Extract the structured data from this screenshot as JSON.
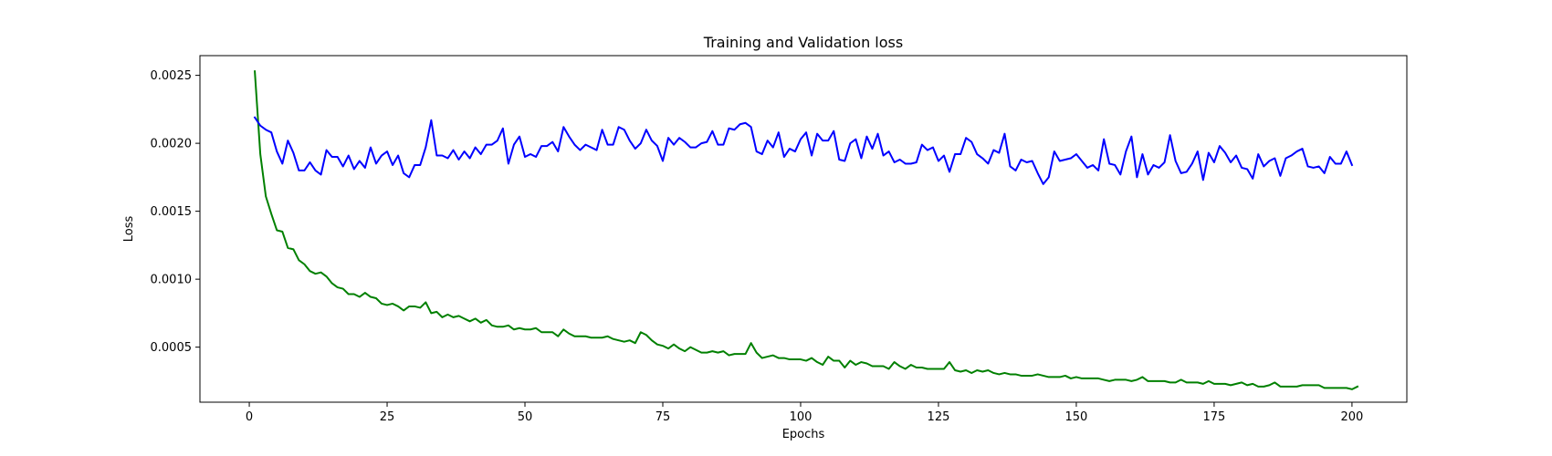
{
  "chart_data": {
    "type": "line",
    "title": "Training and Validation loss",
    "xlabel": "Epochs",
    "ylabel": "Loss",
    "xlim": [
      -8.95,
      209.95
    ],
    "ylim": [
      9.5e-05,
      0.002645
    ],
    "grid": false,
    "x_ticks": [
      0,
      25,
      50,
      75,
      100,
      125,
      150,
      175,
      200
    ],
    "x_tick_labels": [
      "0",
      "25",
      "50",
      "75",
      "100",
      "125",
      "150",
      "175",
      "200"
    ],
    "y_ticks": [
      0.0005,
      0.001,
      0.0015,
      0.002,
      0.0025
    ],
    "y_tick_labels": [
      "0.0005",
      "0.0010",
      "0.0015",
      "0.0020",
      "0.0025"
    ],
    "x_start": 1,
    "x_step": 1,
    "series": [
      {
        "color": "#008000",
        "values": [
          0.00253,
          0.00192,
          0.00161,
          0.00148,
          0.00136,
          0.00135,
          0.00123,
          0.00122,
          0.00114,
          0.00111,
          0.00106,
          0.00104,
          0.00105,
          0.00102,
          0.00097,
          0.00094,
          0.00093,
          0.00089,
          0.00089,
          0.00087,
          0.0009,
          0.00087,
          0.00086,
          0.00082,
          0.00081,
          0.00082,
          0.0008,
          0.00077,
          0.0008,
          0.0008,
          0.00079,
          0.00083,
          0.00075,
          0.00076,
          0.00072,
          0.00074,
          0.00072,
          0.00073,
          0.00071,
          0.00069,
          0.00071,
          0.00068,
          0.0007,
          0.00066,
          0.00065,
          0.00065,
          0.00066,
          0.00063,
          0.00064,
          0.00063,
          0.00063,
          0.00064,
          0.00061,
          0.00061,
          0.00061,
          0.00058,
          0.00063,
          0.0006,
          0.00058,
          0.00058,
          0.00058,
          0.00057,
          0.00057,
          0.00057,
          0.00058,
          0.00056,
          0.00055,
          0.00054,
          0.00055,
          0.00053,
          0.00061,
          0.00059,
          0.00055,
          0.00052,
          0.00051,
          0.00049,
          0.00052,
          0.00049,
          0.00047,
          0.0005,
          0.00048,
          0.00046,
          0.00046,
          0.00047,
          0.00046,
          0.00047,
          0.00044,
          0.00045,
          0.00045,
          0.00045,
          0.00053,
          0.00046,
          0.00042,
          0.00043,
          0.00044,
          0.00042,
          0.00042,
          0.00041,
          0.00041,
          0.00041,
          0.0004,
          0.00042,
          0.00039,
          0.00037,
          0.00043,
          0.0004,
          0.0004,
          0.00035,
          0.0004,
          0.00037,
          0.00039,
          0.00038,
          0.00036,
          0.00036,
          0.00036,
          0.00034,
          0.00039,
          0.00036,
          0.00034,
          0.00037,
          0.00035,
          0.00035,
          0.00034,
          0.00034,
          0.00034,
          0.00034,
          0.00039,
          0.00033,
          0.00032,
          0.00033,
          0.00031,
          0.00033,
          0.00032,
          0.00033,
          0.00031,
          0.0003,
          0.00031,
          0.0003,
          0.0003,
          0.00029,
          0.00029,
          0.00029,
          0.0003,
          0.00029,
          0.00028,
          0.00028,
          0.00028,
          0.00029,
          0.00027,
          0.00028,
          0.00027,
          0.00027,
          0.00027,
          0.00027,
          0.00026,
          0.00025,
          0.00026,
          0.00026,
          0.00026,
          0.00025,
          0.00026,
          0.00028,
          0.00025,
          0.00025,
          0.00025,
          0.00025,
          0.00024,
          0.00024,
          0.00026,
          0.00024,
          0.00024,
          0.00024,
          0.00023,
          0.00025,
          0.00023,
          0.00023,
          0.00023,
          0.00022,
          0.00023,
          0.00024,
          0.00022,
          0.00023,
          0.00021,
          0.00021,
          0.00022,
          0.00024,
          0.00021,
          0.00021,
          0.00021,
          0.00021,
          0.00022,
          0.00022,
          0.00022,
          0.00022,
          0.0002,
          0.0002,
          0.0002,
          0.0002,
          0.0002,
          0.00019,
          0.00021
        ]
      },
      {
        "color": "#0000ff",
        "values": [
          0.00219,
          0.00213,
          0.0021,
          0.00208,
          0.00194,
          0.00185,
          0.00202,
          0.00193,
          0.0018,
          0.0018,
          0.00186,
          0.0018,
          0.00177,
          0.00195,
          0.0019,
          0.0019,
          0.00183,
          0.00191,
          0.00181,
          0.00187,
          0.00182,
          0.00197,
          0.00185,
          0.00191,
          0.00194,
          0.00184,
          0.00191,
          0.00178,
          0.00175,
          0.00184,
          0.00184,
          0.00197,
          0.00217,
          0.00191,
          0.00191,
          0.00189,
          0.00195,
          0.00188,
          0.00194,
          0.00189,
          0.00197,
          0.00192,
          0.00199,
          0.00199,
          0.00202,
          0.00211,
          0.00185,
          0.00199,
          0.00205,
          0.0019,
          0.00192,
          0.0019,
          0.00198,
          0.00198,
          0.00201,
          0.00194,
          0.00212,
          0.00205,
          0.00199,
          0.00195,
          0.00199,
          0.00197,
          0.00195,
          0.0021,
          0.00199,
          0.00199,
          0.00212,
          0.0021,
          0.00202,
          0.00196,
          0.002,
          0.0021,
          0.00202,
          0.00198,
          0.00187,
          0.00204,
          0.00199,
          0.00204,
          0.00201,
          0.00197,
          0.00197,
          0.002,
          0.00201,
          0.00209,
          0.00199,
          0.00199,
          0.00211,
          0.0021,
          0.00214,
          0.00215,
          0.00212,
          0.00194,
          0.00192,
          0.00202,
          0.00197,
          0.00208,
          0.0019,
          0.00196,
          0.00194,
          0.00203,
          0.00208,
          0.00191,
          0.00207,
          0.00202,
          0.00202,
          0.00209,
          0.00188,
          0.00187,
          0.002,
          0.00203,
          0.00189,
          0.00205,
          0.00196,
          0.00207,
          0.00191,
          0.00194,
          0.00186,
          0.00188,
          0.00185,
          0.00185,
          0.00186,
          0.00199,
          0.00195,
          0.00197,
          0.00187,
          0.00191,
          0.00179,
          0.00192,
          0.00192,
          0.00204,
          0.00201,
          0.00192,
          0.00189,
          0.00185,
          0.00195,
          0.00193,
          0.00207,
          0.00183,
          0.0018,
          0.00188,
          0.00186,
          0.00187,
          0.00178,
          0.0017,
          0.00175,
          0.00194,
          0.00187,
          0.00188,
          0.00189,
          0.00192,
          0.00187,
          0.00182,
          0.00184,
          0.0018,
          0.00203,
          0.00185,
          0.00184,
          0.00177,
          0.00194,
          0.00205,
          0.00175,
          0.00192,
          0.00177,
          0.00184,
          0.00182,
          0.00186,
          0.00206,
          0.00187,
          0.00178,
          0.00179,
          0.00185,
          0.00194,
          0.00173,
          0.00193,
          0.00186,
          0.00198,
          0.00193,
          0.00186,
          0.00191,
          0.00182,
          0.00181,
          0.00174,
          0.00192,
          0.00183,
          0.00187,
          0.00189,
          0.00176,
          0.00189,
          0.00191,
          0.00194,
          0.00196,
          0.00183,
          0.00182,
          0.00183,
          0.00178,
          0.0019,
          0.00185,
          0.00185,
          0.00194,
          0.00184
        ]
      }
    ]
  }
}
